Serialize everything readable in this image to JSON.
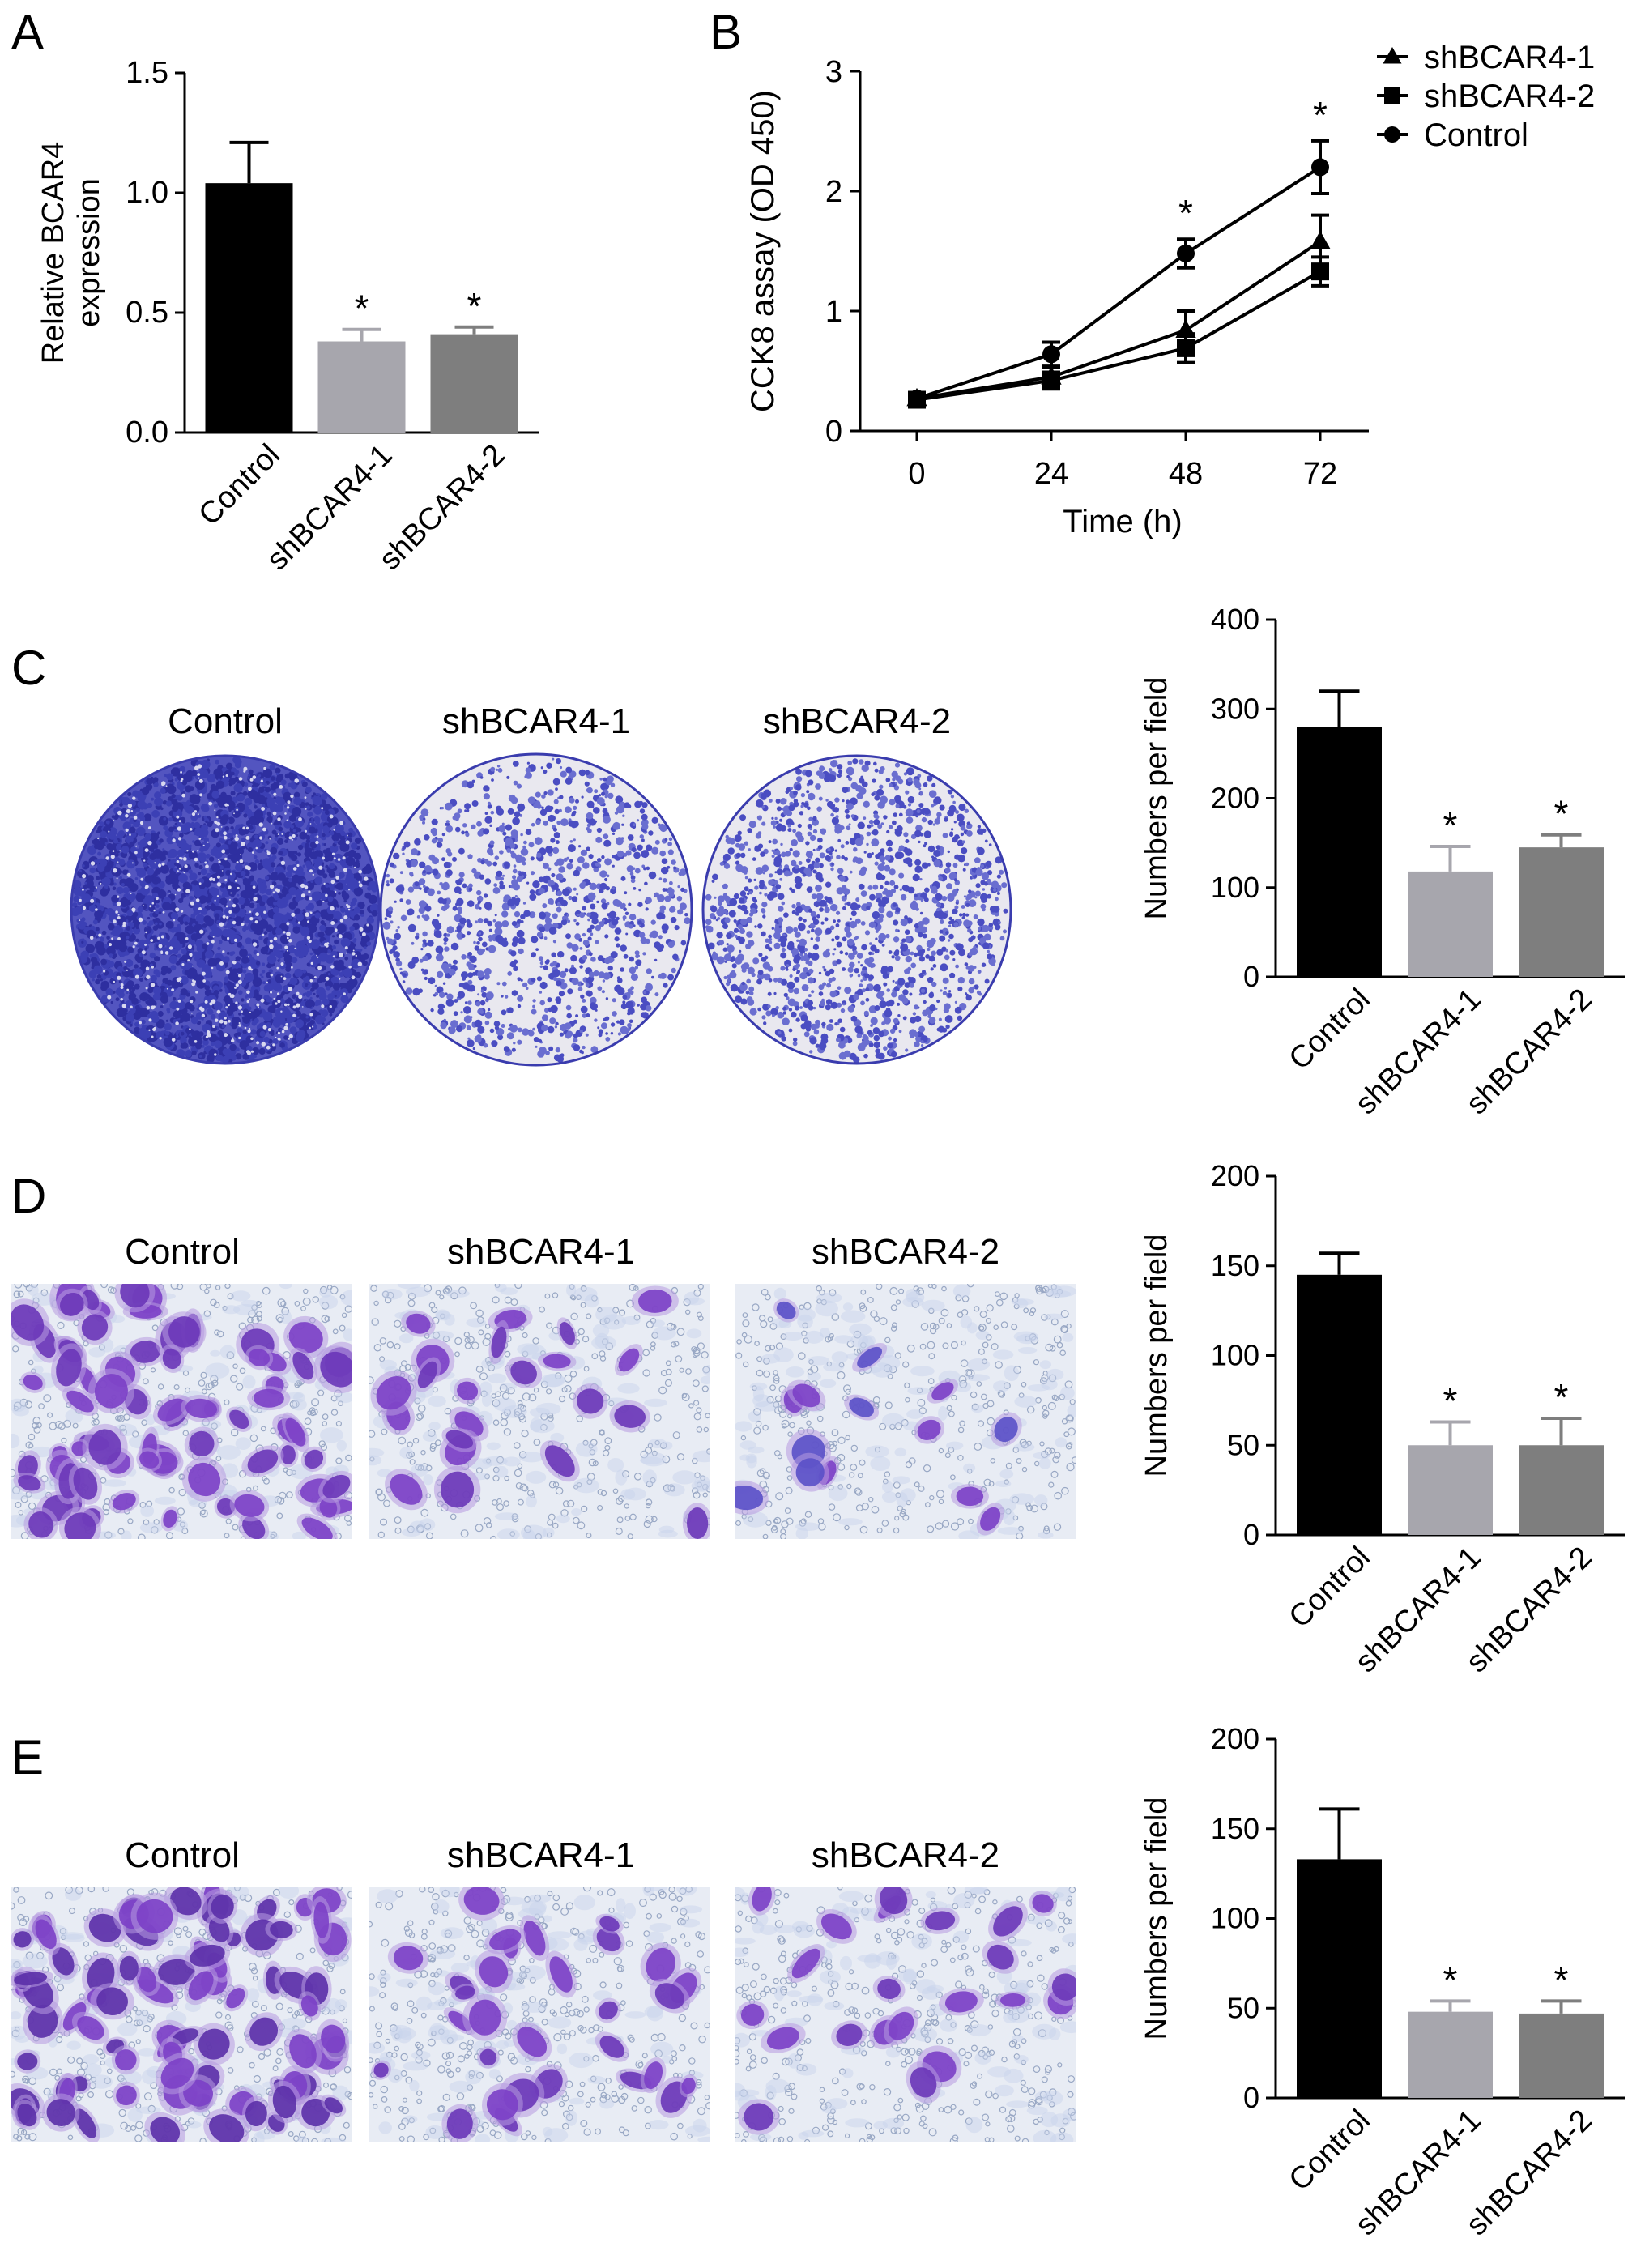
{
  "panel_letters": [
    "A",
    "B",
    "C",
    "D",
    "E"
  ],
  "colors": {
    "control": "#000000",
    "shBCAR4_1": "#a7a6ad",
    "shBCAR4_2": "#7e7e7e",
    "stain_dark": "#3b3fb2",
    "stain_light": "#eceaf0",
    "cell_purple": "#7a3ec4",
    "micro_bg": "#e6eaf3"
  },
  "image_labels": {
    "C": [
      "Control",
      "shBCAR4-1",
      "shBCAR4-2"
    ],
    "D": [
      "Control",
      "shBCAR4-1",
      "shBCAR4-2"
    ],
    "E": [
      "Control",
      "shBCAR4-1",
      "shBCAR4-2"
    ]
  },
  "chart_data": [
    {
      "panel": "A",
      "type": "bar",
      "categories": [
        "Control",
        "shBCAR4-1",
        "shBCAR4-2"
      ],
      "values": [
        1.04,
        0.38,
        0.41
      ],
      "errors": [
        0.17,
        0.05,
        0.03
      ],
      "significance": [
        "",
        "*",
        "*"
      ],
      "ylabel_lines": [
        "Relative  BCAR4",
        "expression"
      ],
      "ylim": [
        0,
        1.5
      ],
      "yticks": [
        "0.0",
        "0.5",
        "1.0",
        "1.5"
      ],
      "grid": false
    },
    {
      "panel": "B",
      "type": "line",
      "x": [
        0,
        24,
        48,
        72
      ],
      "xticks": [
        "0",
        "24",
        "48",
        "72"
      ],
      "xlabel": "Time (h)",
      "ylabel": "CCK8 assay (OD 450)",
      "ylim": [
        0,
        3
      ],
      "yticks": [
        "0",
        "1",
        "2",
        "3"
      ],
      "series": [
        {
          "name": "shBCAR4-1",
          "marker": "triangle",
          "values": [
            0.27,
            0.45,
            0.84,
            1.58
          ],
          "errors": [
            0.03,
            0.08,
            0.16,
            0.22
          ]
        },
        {
          "name": "shBCAR4-2",
          "marker": "square",
          "values": [
            0.26,
            0.42,
            0.69,
            1.33
          ],
          "errors": [
            0.03,
            0.07,
            0.12,
            0.12
          ]
        },
        {
          "name": "Control",
          "marker": "circle",
          "values": [
            0.27,
            0.64,
            1.48,
            2.2
          ],
          "errors": [
            0.03,
            0.1,
            0.12,
            0.22
          ]
        }
      ],
      "significance": [
        "",
        "",
        "*",
        "*"
      ],
      "legend": "top-right",
      "grid": false
    },
    {
      "panel": "C",
      "type": "bar",
      "categories": [
        "Control",
        "shBCAR4-1",
        "shBCAR4-2"
      ],
      "values": [
        280,
        118,
        145
      ],
      "errors": [
        40,
        28,
        14
      ],
      "significance": [
        "",
        "*",
        "*"
      ],
      "ylabel": "Numbers per field",
      "ylim": [
        0,
        400
      ],
      "yticks": [
        "0",
        "100",
        "200",
        "300",
        "400"
      ],
      "grid": false
    },
    {
      "panel": "D",
      "type": "bar",
      "categories": [
        "Control",
        "shBCAR4-1",
        "shBCAR4-2"
      ],
      "values": [
        145,
        50,
        50
      ],
      "errors": [
        12,
        13,
        15
      ],
      "significance": [
        "",
        "*",
        "*"
      ],
      "ylabel": "Numbers per field",
      "ylim": [
        0,
        200
      ],
      "yticks": [
        "0",
        "50",
        "100",
        "150",
        "200"
      ],
      "grid": false
    },
    {
      "panel": "E",
      "type": "bar",
      "categories": [
        "Control",
        "shBCAR4-1",
        "shBCAR4-2"
      ],
      "values": [
        133,
        48,
        47
      ],
      "errors": [
        28,
        6,
        7
      ],
      "significance": [
        "",
        "*",
        "*"
      ],
      "ylabel": "Numbers per field",
      "ylim": [
        0,
        200
      ],
      "yticks": [
        "0",
        "50",
        "100",
        "150",
        "200"
      ],
      "grid": false
    }
  ]
}
